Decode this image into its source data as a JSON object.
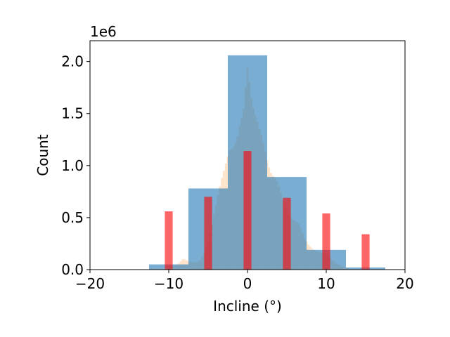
{
  "chart_data": {
    "type": "bar",
    "xlabel": "Incline (°)",
    "ylabel": "Count",
    "y_scale_label": "1e6",
    "xlim": [
      -20,
      20
    ],
    "ylim": [
      0,
      2.2
    ],
    "x_ticks": [
      -20,
      -10,
      0,
      10,
      20
    ],
    "x_tick_labels": [
      "−20",
      "−10",
      "0",
      "10",
      "20"
    ],
    "y_ticks": [
      0.0,
      0.5,
      1.0,
      1.5,
      2.0
    ],
    "y_tick_labels": [
      "0.0",
      "0.5",
      "1.0",
      "1.5",
      "2.0"
    ],
    "grid": false,
    "legend": "none",
    "series": [
      {
        "kind": "fine_histogram",
        "color": "#ffdab9",
        "opacity": 0.75,
        "bin_width": 0.25,
        "bins": [
          {
            "x": -10.0,
            "y": 0.02
          },
          {
            "x": -9.75,
            "y": 0.03
          },
          {
            "x": -9.5,
            "y": 0.03
          },
          {
            "x": -9.25,
            "y": 0.04
          },
          {
            "x": -9.0,
            "y": 0.05
          },
          {
            "x": -8.75,
            "y": 0.06
          },
          {
            "x": -8.5,
            "y": 0.08
          },
          {
            "x": -8.25,
            "y": 0.1
          },
          {
            "x": -8.0,
            "y": 0.1
          },
          {
            "x": -7.75,
            "y": 0.09
          },
          {
            "x": -7.5,
            "y": 0.08
          },
          {
            "x": -7.25,
            "y": 0.08
          },
          {
            "x": -7.0,
            "y": 0.07
          },
          {
            "x": -6.75,
            "y": 0.07
          },
          {
            "x": -6.5,
            "y": 0.07
          },
          {
            "x": -6.25,
            "y": 0.08
          },
          {
            "x": -6.0,
            "y": 0.09
          },
          {
            "x": -5.75,
            "y": 0.12
          },
          {
            "x": -5.5,
            "y": 0.16
          },
          {
            "x": -5.25,
            "y": 0.21
          },
          {
            "x": -5.0,
            "y": 0.27
          },
          {
            "x": -4.75,
            "y": 0.35
          },
          {
            "x": -4.5,
            "y": 0.44
          },
          {
            "x": -4.25,
            "y": 0.53
          },
          {
            "x": -4.0,
            "y": 0.62
          },
          {
            "x": -3.75,
            "y": 0.71
          },
          {
            "x": -3.5,
            "y": 0.8
          },
          {
            "x": -3.25,
            "y": 0.88
          },
          {
            "x": -3.0,
            "y": 0.95
          },
          {
            "x": -2.75,
            "y": 1.02
          },
          {
            "x": -2.5,
            "y": 1.09
          },
          {
            "x": -2.25,
            "y": 1.15
          },
          {
            "x": -2.0,
            "y": 1.16
          },
          {
            "x": -1.75,
            "y": 1.18
          },
          {
            "x": -1.5,
            "y": 1.22
          },
          {
            "x": -1.25,
            "y": 1.28
          },
          {
            "x": -1.0,
            "y": 1.38
          },
          {
            "x": -0.75,
            "y": 1.45
          },
          {
            "x": -0.5,
            "y": 1.55
          },
          {
            "x": -0.25,
            "y": 1.75
          },
          {
            "x": 0.0,
            "y": 1.95
          },
          {
            "x": 0.25,
            "y": 1.8
          },
          {
            "x": 0.5,
            "y": 1.65
          },
          {
            "x": 0.75,
            "y": 1.55
          },
          {
            "x": 1.0,
            "y": 1.48
          },
          {
            "x": 1.25,
            "y": 1.42
          },
          {
            "x": 1.5,
            "y": 1.35
          },
          {
            "x": 1.75,
            "y": 1.3
          },
          {
            "x": 2.0,
            "y": 1.22
          },
          {
            "x": 2.25,
            "y": 1.13
          },
          {
            "x": 2.5,
            "y": 1.05
          },
          {
            "x": 2.75,
            "y": 0.98
          },
          {
            "x": 3.0,
            "y": 0.93
          },
          {
            "x": 3.25,
            "y": 0.9
          },
          {
            "x": 3.5,
            "y": 0.88
          },
          {
            "x": 3.75,
            "y": 0.85
          },
          {
            "x": 4.0,
            "y": 0.8
          },
          {
            "x": 4.25,
            "y": 0.74
          },
          {
            "x": 4.5,
            "y": 0.68
          },
          {
            "x": 4.75,
            "y": 0.63
          },
          {
            "x": 5.0,
            "y": 0.58
          },
          {
            "x": 5.25,
            "y": 0.53
          },
          {
            "x": 5.5,
            "y": 0.5
          },
          {
            "x": 5.75,
            "y": 0.48
          },
          {
            "x": 6.0,
            "y": 0.47
          },
          {
            "x": 6.25,
            "y": 0.46
          },
          {
            "x": 6.5,
            "y": 0.44
          },
          {
            "x": 6.75,
            "y": 0.4
          },
          {
            "x": 7.0,
            "y": 0.35
          },
          {
            "x": 7.25,
            "y": 0.3
          },
          {
            "x": 7.5,
            "y": 0.27
          },
          {
            "x": 7.75,
            "y": 0.24
          },
          {
            "x": 8.0,
            "y": 0.22
          },
          {
            "x": 8.25,
            "y": 0.2
          },
          {
            "x": 8.5,
            "y": 0.19
          },
          {
            "x": 8.75,
            "y": 0.18
          },
          {
            "x": 9.0,
            "y": 0.17
          },
          {
            "x": 9.25,
            "y": 0.17
          },
          {
            "x": 9.5,
            "y": 0.16
          },
          {
            "x": 9.75,
            "y": 0.16
          },
          {
            "x": 10.0,
            "y": 0.15
          },
          {
            "x": 10.25,
            "y": 0.13
          },
          {
            "x": 10.5,
            "y": 0.11
          },
          {
            "x": 10.75,
            "y": 0.09
          },
          {
            "x": 11.0,
            "y": 0.08
          },
          {
            "x": 11.25,
            "y": 0.06
          },
          {
            "x": 11.5,
            "y": 0.05
          },
          {
            "x": 11.75,
            "y": 0.04
          },
          {
            "x": 12.0,
            "y": 0.03
          },
          {
            "x": 12.25,
            "y": 0.02
          },
          {
            "x": 12.5,
            "y": 0.02
          },
          {
            "x": 12.75,
            "y": 0.01
          }
        ]
      },
      {
        "kind": "wide_histogram",
        "color": "#1f77b4",
        "opacity": 0.6,
        "bin_width": 5,
        "bins": [
          {
            "x": -10,
            "y": 0.05
          },
          {
            "x": -5,
            "y": 0.78
          },
          {
            "x": 0,
            "y": 2.06
          },
          {
            "x": 5,
            "y": 0.89
          },
          {
            "x": 10,
            "y": 0.19
          },
          {
            "x": 15,
            "y": 0.02
          }
        ]
      },
      {
        "kind": "narrow_bars",
        "color": "#ff0000",
        "opacity": 0.6,
        "bin_width": 1,
        "bins": [
          {
            "x": -10,
            "y": 0.56
          },
          {
            "x": -5,
            "y": 0.7
          },
          {
            "x": 0,
            "y": 1.14
          },
          {
            "x": 5,
            "y": 0.69
          },
          {
            "x": 10,
            "y": 0.54
          },
          {
            "x": 15,
            "y": 0.34
          }
        ]
      }
    ]
  }
}
